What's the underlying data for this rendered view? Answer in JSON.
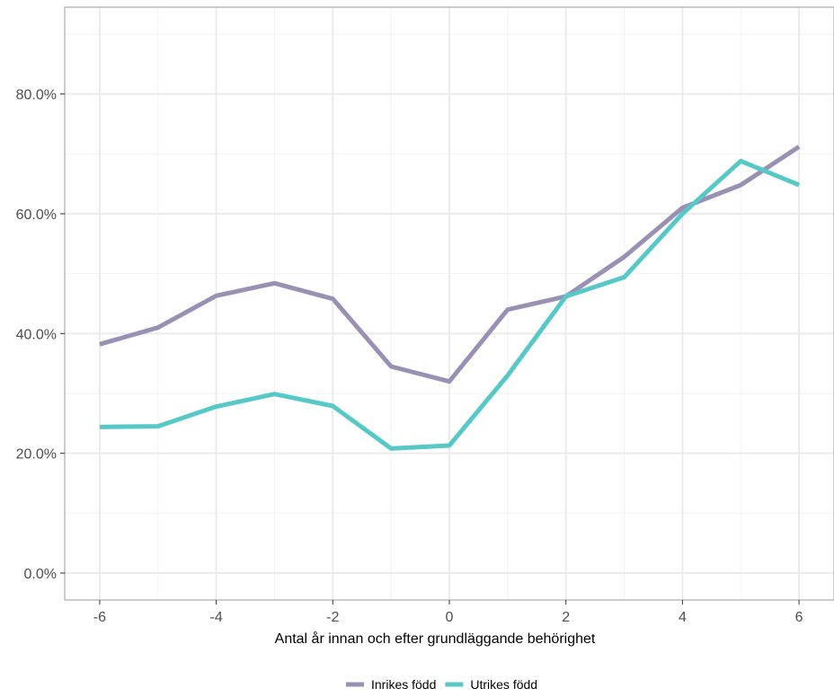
{
  "chart_data": {
    "type": "line",
    "title": "",
    "xlabel": "Antal år innan och efter grundläggande behörighet",
    "ylabel": "",
    "x": [
      -6,
      -5,
      -4,
      -3,
      -2,
      -1,
      0,
      1,
      2,
      3,
      4,
      5,
      6
    ],
    "xlim": [
      -6.6,
      6.6
    ],
    "ylim": [
      -0.045,
      0.945
    ],
    "x_ticks": [
      -6,
      -4,
      -2,
      0,
      2,
      4,
      6
    ],
    "x_tick_labels": [
      "-6",
      "-4",
      "-2",
      "0",
      "2",
      "4",
      "6"
    ],
    "y_ticks": [
      0,
      0.2,
      0.4,
      0.6,
      0.8
    ],
    "y_tick_labels": [
      "0.0%",
      "20.0%",
      "40.0%",
      "60.0%",
      "80.0%"
    ],
    "grid": true,
    "legend_position": "bottom",
    "series": [
      {
        "name": "Inrikes född",
        "color": "#9a90b4",
        "values": [
          0.382,
          0.41,
          0.463,
          0.484,
          0.458,
          0.345,
          0.32,
          0.44,
          0.462,
          0.528,
          0.61,
          0.648,
          0.712
        ]
      },
      {
        "name": "Utrikes född",
        "color": "#56c8c8",
        "values": [
          0.244,
          0.245,
          0.278,
          0.299,
          0.279,
          0.208,
          0.213,
          0.33,
          0.462,
          0.494,
          0.6,
          0.688,
          0.648
        ]
      }
    ]
  }
}
